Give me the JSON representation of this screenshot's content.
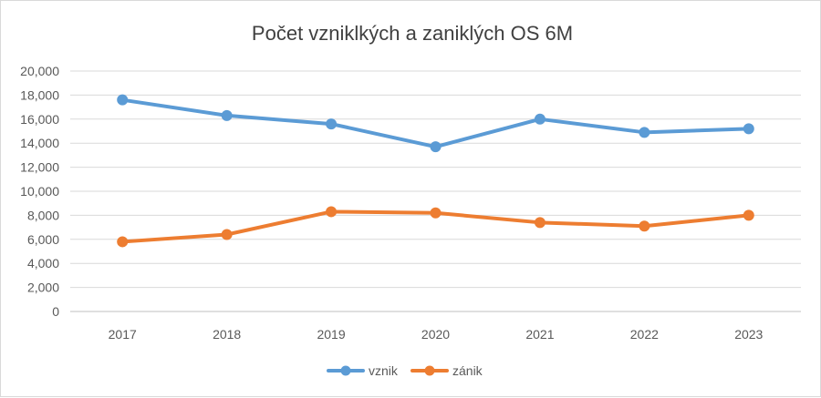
{
  "chart_data": {
    "type": "line",
    "title": "Počet vzniklkých a zaniklých OS 6M",
    "xlabel": "",
    "ylabel": "",
    "categories": [
      "2017",
      "2018",
      "2019",
      "2020",
      "2021",
      "2022",
      "2023"
    ],
    "ylim": [
      0,
      20000
    ],
    "yticks": [
      "0",
      "2,000",
      "4,000",
      "6,000",
      "8,000",
      "10,000",
      "12,000",
      "14,000",
      "16,000",
      "18,000",
      "20,000"
    ],
    "grid": true,
    "legend_position": "bottom",
    "series": [
      {
        "name": "vznik",
        "color": "#5b9bd5",
        "values": [
          17600,
          16300,
          15600,
          13700,
          16000,
          14900,
          15200
        ]
      },
      {
        "name": "zánik",
        "color": "#ed7d31",
        "values": [
          5800,
          6400,
          8300,
          8200,
          7400,
          7100,
          8000
        ]
      }
    ]
  }
}
